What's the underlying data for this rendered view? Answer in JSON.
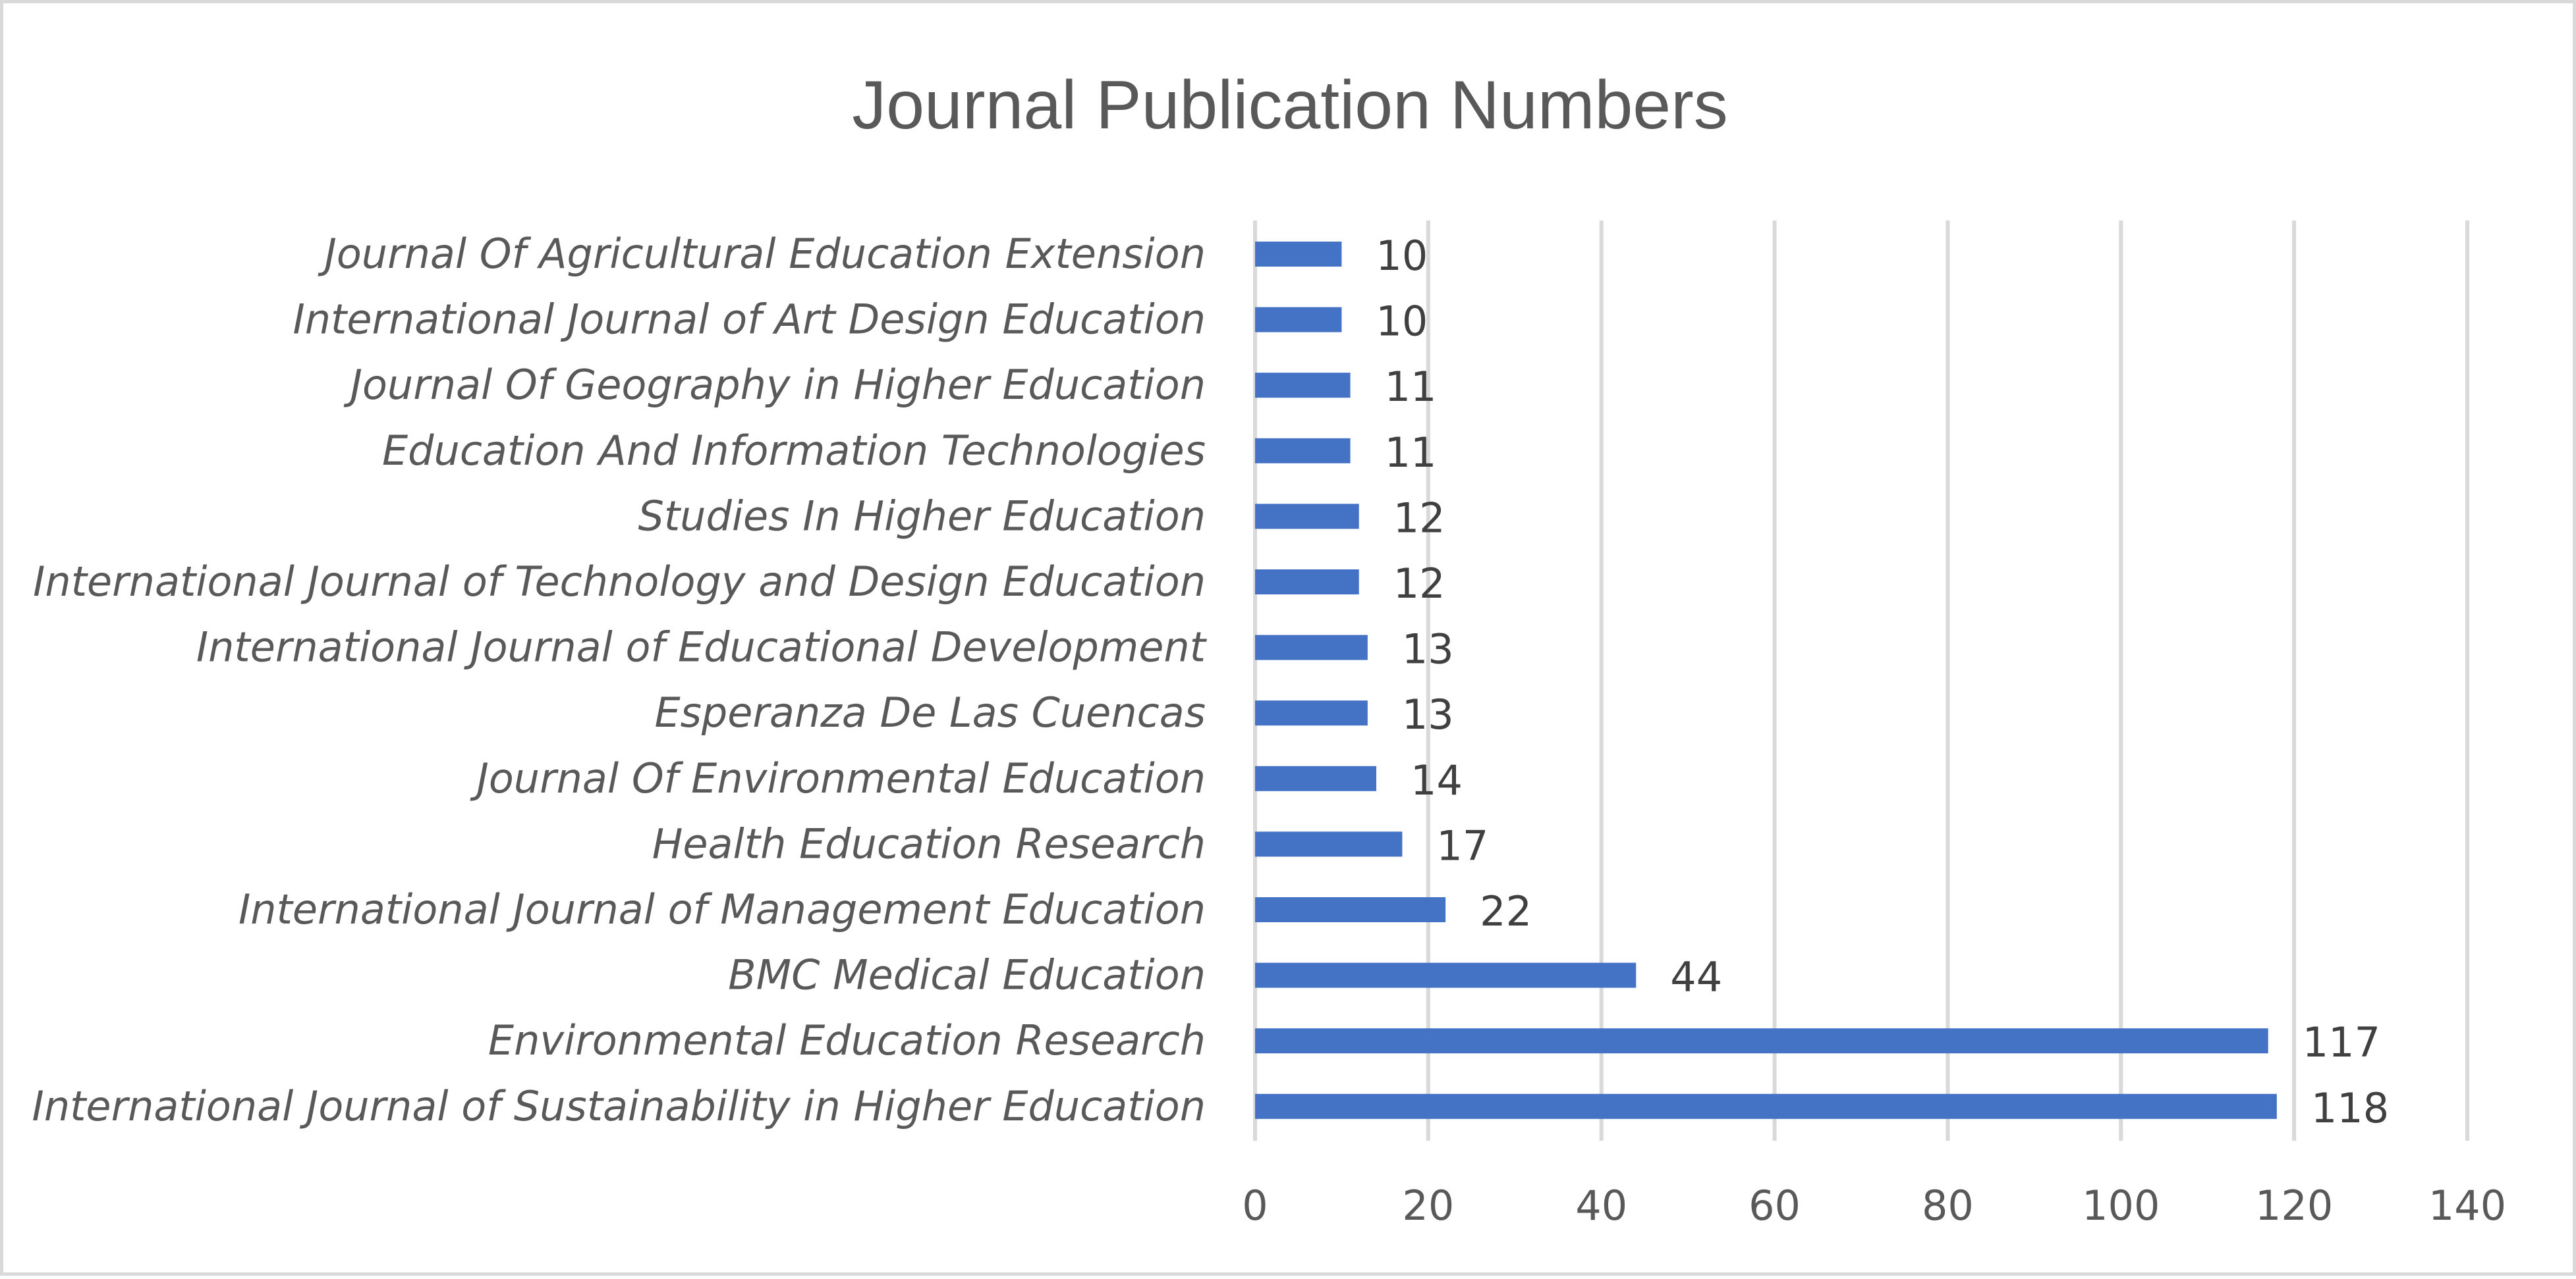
{
  "chart_data": {
    "type": "bar",
    "orientation": "horizontal",
    "title": "Journal Publication Numbers",
    "categories": [
      "Journal Of Agricultural Education Extension",
      "International Journal of Art Design Education",
      "Journal Of Geography in Higher Education",
      "Education And Information Technologies",
      "Studies In Higher Education",
      "International Journal of Technology and Design Education",
      "International Journal of Educational Development",
      "Esperanza De Las Cuencas",
      "Journal Of Environmental Education",
      "Health Education Research",
      "International Journal of Management Education",
      "BMC Medical Education",
      "Environmental Education Research",
      "International Journal of Sustainability in Higher Education"
    ],
    "values": [
      10,
      10,
      11,
      11,
      12,
      12,
      13,
      13,
      14,
      17,
      22,
      44,
      117,
      118
    ],
    "xlim": [
      0,
      140
    ],
    "xticks": [
      0,
      20,
      40,
      60,
      80,
      100,
      120,
      140
    ],
    "xlabel": "",
    "ylabel": "",
    "grid": "vertical",
    "legend": "none",
    "data_labels": true,
    "bar_color": "#4472c4"
  }
}
